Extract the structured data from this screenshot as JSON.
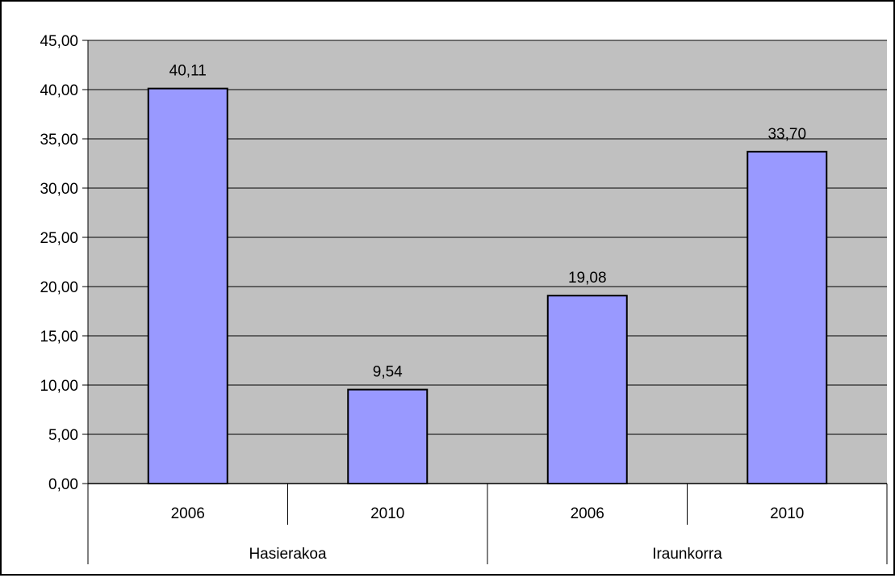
{
  "chart_data": {
    "type": "bar",
    "title": "",
    "xlabel": "",
    "ylabel": "",
    "ylim": [
      0,
      45
    ],
    "y_ticks": [
      "0,00",
      "5,00",
      "10,00",
      "15,00",
      "20,00",
      "25,00",
      "30,00",
      "35,00",
      "40,00",
      "45,00"
    ],
    "grid": true,
    "groups": [
      {
        "label": "Hasierakoa",
        "categories": [
          "2006",
          "2010"
        ]
      },
      {
        "label": "Iraunkorra",
        "categories": [
          "2006",
          "2010"
        ]
      }
    ],
    "categories": [
      "2006",
      "2010",
      "2006",
      "2010"
    ],
    "values": [
      40.11,
      9.54,
      19.08,
      33.7
    ],
    "value_labels": [
      "40,11",
      "9,54",
      "19,08",
      "33,70"
    ],
    "colors": {
      "plot_background": "#c0c0c0",
      "bar_fill": "#9999ff",
      "bar_stroke": "#000000",
      "gridline": "#000000"
    }
  }
}
